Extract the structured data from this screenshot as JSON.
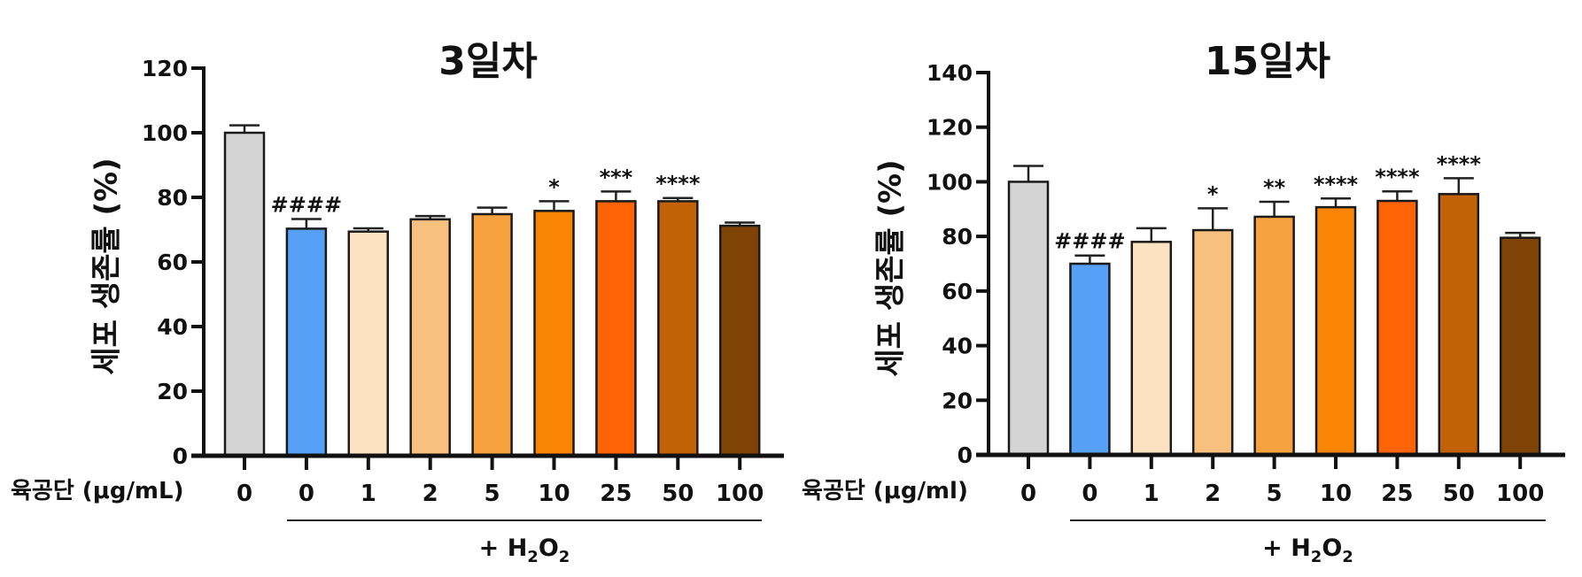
{
  "figure": {
    "treatment_label": "+ H₂O₂",
    "treatment_label_parts": {
      "prefix": "+ H",
      "sub1": "2",
      "mid": "O",
      "sub2": "2"
    }
  },
  "chart_data": [
    {
      "type": "bar",
      "title": "3일차",
      "ylabel": "세포 생존률 (%)",
      "xlabel": "육공단 (μg/mL)",
      "ylim": [
        0,
        120
      ],
      "yticks": [
        0,
        20,
        40,
        60,
        80,
        100,
        120
      ],
      "categories": [
        "0",
        "0",
        "1",
        "2",
        "5",
        "10",
        "25",
        "50",
        "100"
      ],
      "group_annotation": {
        "label": "+ H2O2",
        "from_index": 1,
        "to_index": 8
      },
      "values": [
        100,
        70.3,
        69.4,
        73.2,
        74.8,
        75.8,
        78.8,
        78.8,
        71.2
      ],
      "error": [
        2.3,
        3.0,
        1.0,
        1.0,
        2.0,
        3.0,
        3.0,
        1.0,
        1.0
      ],
      "significance": [
        "",
        "####",
        "",
        "",
        "",
        "*",
        "***",
        "****",
        ""
      ],
      "colors": [
        "#d4d4d4",
        "#57a0f7",
        "#fde2c2",
        "#f8c07e",
        "#f7a23e",
        "#fa8505",
        "#fe6305",
        "#c26108",
        "#7f4308"
      ],
      "grid": false,
      "legend": "none"
    },
    {
      "type": "bar",
      "title": "15일차",
      "ylabel": "세포 생존률 (%)",
      "xlabel": "육공단 (μg/ml)",
      "ylim": [
        0,
        140
      ],
      "yticks": [
        0,
        20,
        40,
        60,
        80,
        100,
        120,
        140
      ],
      "categories": [
        "0",
        "0",
        "1",
        "2",
        "5",
        "10",
        "25",
        "50",
        "100"
      ],
      "group_annotation": {
        "label": "+ H2O2",
        "from_index": 1,
        "to_index": 8
      },
      "values": [
        100,
        70.0,
        78.0,
        82.3,
        87.2,
        90.7,
        93.0,
        95.5,
        79.5
      ],
      "error": [
        5.8,
        3.0,
        5.0,
        8.0,
        5.5,
        3.2,
        3.5,
        5.8,
        1.8
      ],
      "significance": [
        "",
        "####",
        "",
        "*",
        "**",
        "****",
        "****",
        "****",
        ""
      ],
      "colors": [
        "#d4d4d4",
        "#57a0f7",
        "#fde2c2",
        "#f8c07e",
        "#f7a23e",
        "#fa8505",
        "#fe6305",
        "#c26108",
        "#7f4308"
      ],
      "grid": false,
      "legend": "none"
    }
  ]
}
